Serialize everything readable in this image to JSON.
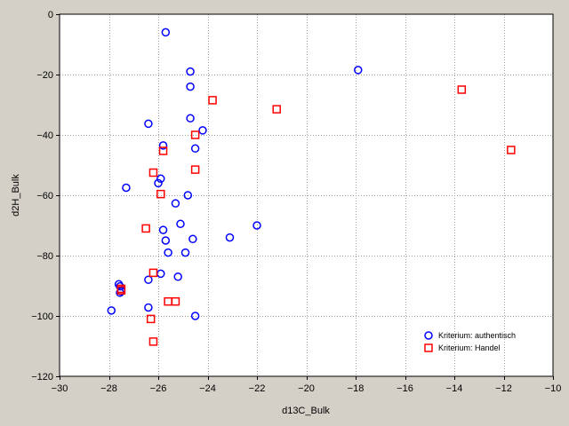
{
  "chart_data": {
    "type": "scatter",
    "title": "",
    "xlabel": "d13C_Bulk",
    "ylabel": "d2H_Bulk",
    "xlim": [
      -30,
      -10
    ],
    "ylim": [
      -120,
      0
    ],
    "xticks": [
      -30,
      -28,
      -26,
      -24,
      -22,
      -20,
      -18,
      -16,
      -14,
      -12,
      -10
    ],
    "yticks": [
      0,
      -20,
      -40,
      -60,
      -80,
      -100,
      -120
    ],
    "grid": true,
    "legend_position": "bottom-right",
    "series": [
      {
        "name": "Kriterium: authentisch",
        "marker": "circle",
        "color": "#0000ff",
        "points": [
          [
            -25.7,
            -6
          ],
          [
            -24.7,
            -19
          ],
          [
            -17.9,
            -18.5
          ],
          [
            -24.7,
            -24
          ],
          [
            -24.7,
            -34.5
          ],
          [
            -26.4,
            -36.3
          ],
          [
            -24.2,
            -38.5
          ],
          [
            -25.8,
            -43.5
          ],
          [
            -24.5,
            -44.5
          ],
          [
            -25.9,
            -54.5
          ],
          [
            -26,
            -56
          ],
          [
            -27.3,
            -57.5
          ],
          [
            -24.8,
            -60
          ],
          [
            -25.3,
            -62.7
          ],
          [
            -25.1,
            -69.5
          ],
          [
            -22,
            -70
          ],
          [
            -25.8,
            -71.5
          ],
          [
            -25.7,
            -75
          ],
          [
            -24.6,
            -74.5
          ],
          [
            -23.1,
            -74
          ],
          [
            -25.6,
            -79
          ],
          [
            -24.9,
            -79
          ],
          [
            -25.9,
            -86
          ],
          [
            -25.2,
            -87
          ],
          [
            -26.4,
            -88
          ],
          [
            -27.6,
            -89.5
          ],
          [
            -27.55,
            -90.2
          ],
          [
            -27.5,
            -91.8
          ],
          [
            -27.55,
            -92.3
          ],
          [
            -26.4,
            -97.2
          ],
          [
            -27.9,
            -98.2
          ],
          [
            -24.5,
            -100
          ]
        ]
      },
      {
        "name": "Kriterium: Handel",
        "marker": "square",
        "color": "#ff0000",
        "points": [
          [
            -13.7,
            -25
          ],
          [
            -11.7,
            -45
          ],
          [
            -23.8,
            -28.5
          ],
          [
            -21.2,
            -31.5
          ],
          [
            -24.5,
            -40
          ],
          [
            -25.8,
            -45.3
          ],
          [
            -24.5,
            -51.5
          ],
          [
            -26.2,
            -52.5
          ],
          [
            -25.9,
            -59.6
          ],
          [
            -26.5,
            -71
          ],
          [
            -26.2,
            -85.7
          ],
          [
            -27.5,
            -91
          ],
          [
            -27.5,
            -91.5
          ],
          [
            -25.6,
            -95.2
          ],
          [
            -25.3,
            -95.2
          ],
          [
            -26.3,
            -101
          ],
          [
            -26.2,
            -108.5
          ]
        ]
      }
    ]
  }
}
